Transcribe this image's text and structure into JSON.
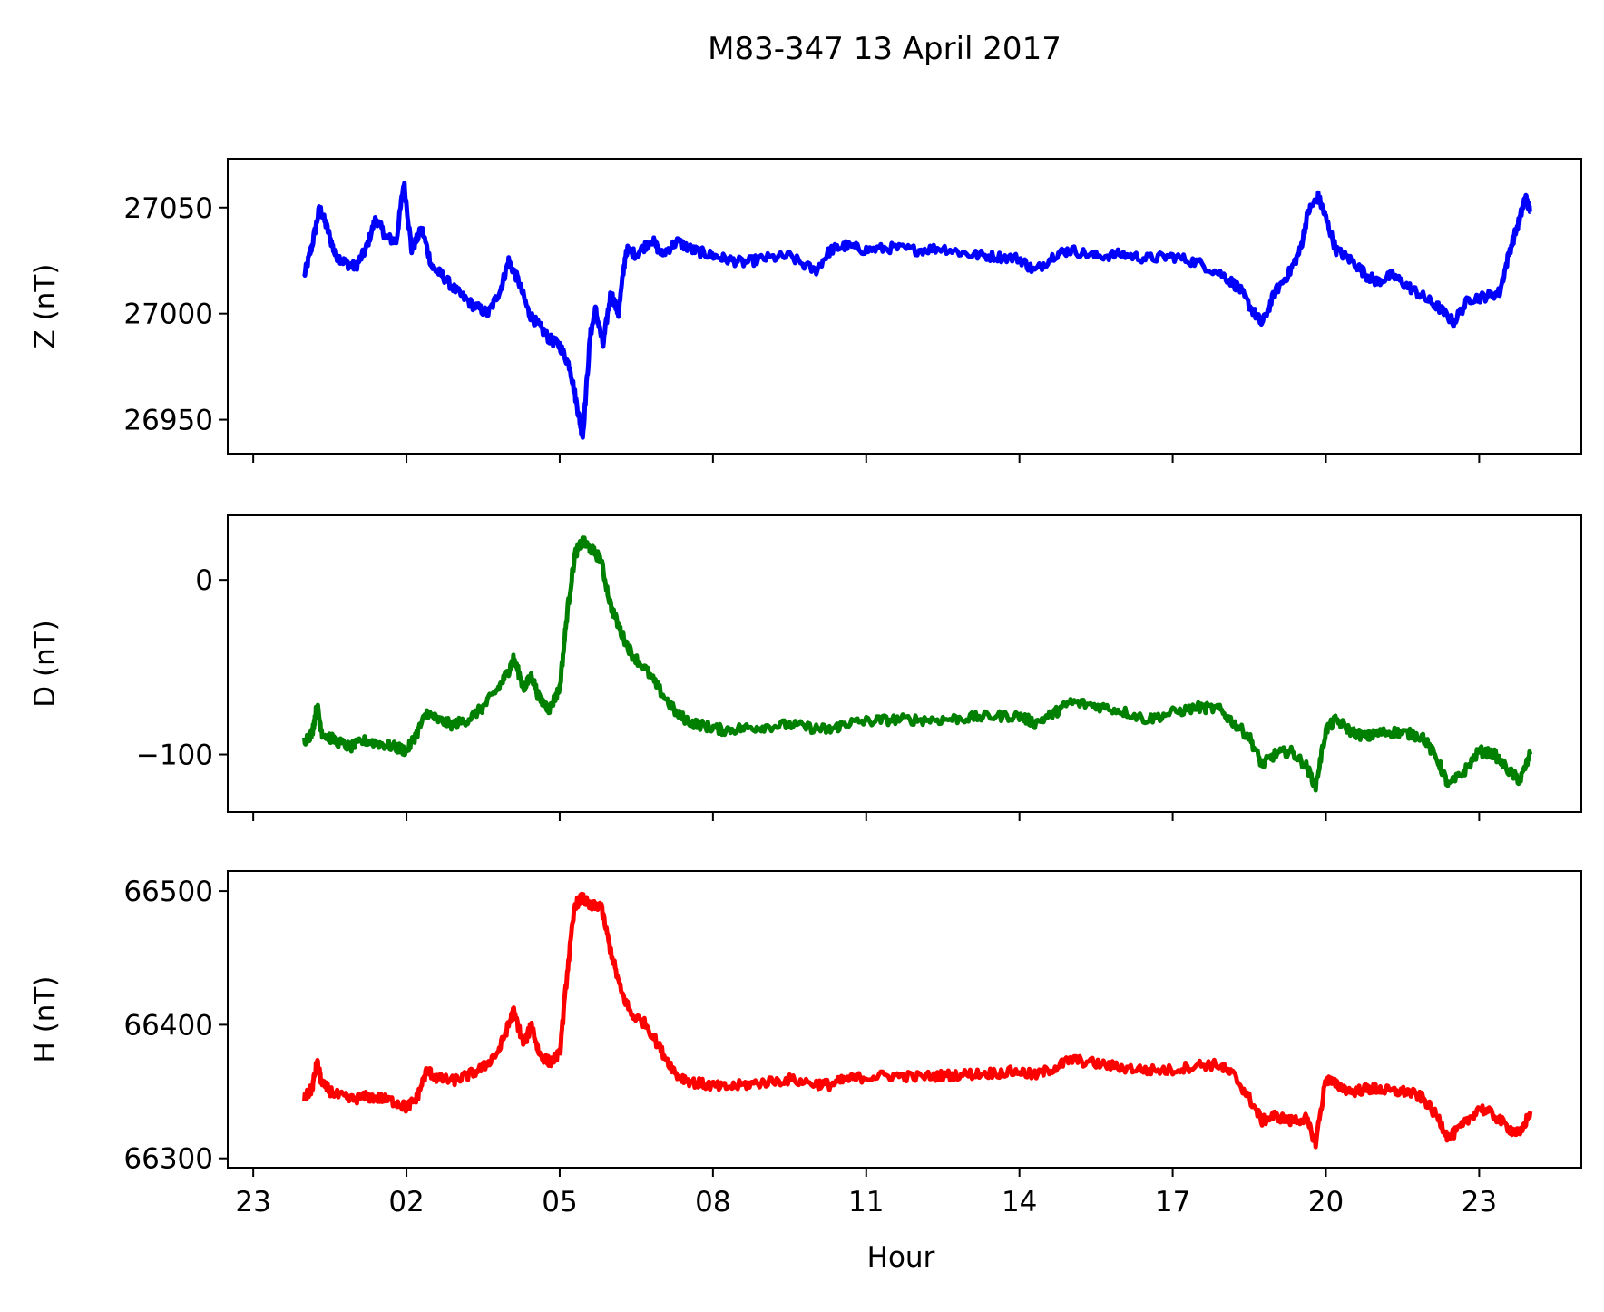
{
  "chart_data": {
    "type": "line",
    "title": "M83-347 13 April 2017",
    "xlabel": "Hour",
    "x_tick_labels": [
      "23",
      "02",
      "05",
      "08",
      "11",
      "14",
      "17",
      "20",
      "23"
    ],
    "x_tick_hours": [
      -1,
      2,
      5,
      8,
      11,
      14,
      17,
      20,
      23
    ],
    "xlim_hours": [
      -1.5,
      25.0
    ],
    "grid": false,
    "legend": "none",
    "panels": [
      {
        "name": "Z",
        "ylabel": "Z (nT)",
        "color": "#0000ff",
        "ylim": [
          26934,
          27073
        ],
        "yticks": [
          26950,
          27000,
          27050
        ],
        "x_hours": [
          0.0,
          0.15,
          0.3,
          0.45,
          0.6,
          0.8,
          1.0,
          1.2,
          1.4,
          1.6,
          1.8,
          1.95,
          2.1,
          2.3,
          2.5,
          2.7,
          3.0,
          3.3,
          3.6,
          3.85,
          4.0,
          4.2,
          4.4,
          4.6,
          4.8,
          5.0,
          5.2,
          5.35,
          5.45,
          5.6,
          5.7,
          5.85,
          6.0,
          6.15,
          6.3,
          6.5,
          6.8,
          7.0,
          7.3,
          7.6,
          7.9,
          8.2,
          8.6,
          9.0,
          9.5,
          10.0,
          10.3,
          10.6,
          11.0,
          11.5,
          12.0,
          12.5,
          13.0,
          13.5,
          14.0,
          14.3,
          14.7,
          15.0,
          15.5,
          16.0,
          16.5,
          17.0,
          17.5,
          18.0,
          18.3,
          18.55,
          18.75,
          19.0,
          19.3,
          19.5,
          19.65,
          19.85,
          20.0,
          20.2,
          20.5,
          20.8,
          21.0,
          21.3,
          21.6,
          21.9,
          22.2,
          22.5,
          22.8,
          23.1,
          23.4,
          23.6,
          23.8,
          23.9,
          24.0
        ],
        "values": [
          27018,
          27032,
          27050,
          27040,
          27028,
          27024,
          27022,
          27030,
          27045,
          27036,
          27034,
          27062,
          27030,
          27040,
          27022,
          27018,
          27010,
          27004,
          27000,
          27012,
          27025,
          27015,
          27000,
          26994,
          26988,
          26985,
          26975,
          26955,
          26942,
          26990,
          27002,
          26985,
          27010,
          27000,
          27030,
          27028,
          27035,
          27028,
          27034,
          27030,
          27028,
          27026,
          27024,
          27026,
          27027,
          27020,
          27030,
          27032,
          27030,
          27031,
          27030,
          27031,
          27028,
          27027,
          27026,
          27020,
          27028,
          27030,
          27027,
          27028,
          27026,
          27027,
          27024,
          27018,
          27012,
          27002,
          26995,
          27010,
          27020,
          27030,
          27048,
          27055,
          27045,
          27030,
          27025,
          27018,
          27015,
          27018,
          27013,
          27008,
          27003,
          26996,
          27007,
          27008,
          27010,
          27030,
          27045,
          27055,
          27048
        ]
      },
      {
        "name": "D",
        "ylabel": "D (nT)",
        "color": "#008000",
        "ylim": [
          -133,
          37
        ],
        "yticks": [
          0,
          -100
        ],
        "ytick_labels": [
          "0",
          "−100"
        ],
        "x_hours": [
          0.0,
          0.15,
          0.25,
          0.35,
          0.6,
          0.9,
          1.2,
          1.5,
          1.8,
          2.0,
          2.2,
          2.4,
          2.6,
          2.9,
          3.2,
          3.5,
          3.8,
          4.0,
          4.1,
          4.3,
          4.45,
          4.6,
          4.8,
          5.0,
          5.15,
          5.3,
          5.45,
          5.6,
          5.8,
          6.0,
          6.2,
          6.4,
          6.7,
          7.0,
          7.3,
          7.6,
          7.9,
          8.2,
          8.6,
          9.0,
          9.5,
          10.0,
          10.3,
          10.6,
          11.0,
          11.5,
          12.0,
          12.5,
          13.0,
          13.5,
          14.0,
          14.3,
          14.7,
          15.0,
          15.5,
          16.0,
          16.5,
          17.0,
          17.5,
          17.9,
          18.2,
          18.5,
          18.75,
          19.0,
          19.3,
          19.6,
          19.8,
          20.0,
          20.2,
          20.5,
          20.8,
          21.0,
          21.3,
          21.6,
          21.9,
          22.2,
          22.4,
          22.7,
          23.0,
          23.3,
          23.6,
          23.8,
          24.0
        ],
        "values": [
          -92,
          -88,
          -72,
          -88,
          -92,
          -96,
          -92,
          -94,
          -96,
          -98,
          -88,
          -76,
          -80,
          -83,
          -80,
          -73,
          -62,
          -52,
          -45,
          -62,
          -55,
          -68,
          -74,
          -62,
          -18,
          15,
          22,
          18,
          12,
          -15,
          -30,
          -42,
          -52,
          -65,
          -77,
          -82,
          -84,
          -86,
          -85,
          -84,
          -83,
          -85,
          -86,
          -82,
          -81,
          -80,
          -80,
          -80,
          -79,
          -78,
          -78,
          -82,
          -76,
          -70,
          -72,
          -75,
          -80,
          -76,
          -73,
          -74,
          -82,
          -90,
          -106,
          -100,
          -98,
          -106,
          -118,
          -86,
          -80,
          -87,
          -90,
          -88,
          -87,
          -88,
          -90,
          -104,
          -118,
          -110,
          -98,
          -100,
          -110,
          -115,
          -100
        ]
      },
      {
        "name": "H",
        "ylabel": "H (nT)",
        "color": "#ff0000",
        "ylim": [
          66293,
          66515
        ],
        "yticks": [
          66300,
          66400,
          66500
        ],
        "x_hours": [
          0.0,
          0.15,
          0.25,
          0.35,
          0.6,
          0.9,
          1.2,
          1.5,
          1.8,
          2.0,
          2.2,
          2.4,
          2.6,
          2.9,
          3.2,
          3.5,
          3.8,
          4.0,
          4.1,
          4.3,
          4.45,
          4.6,
          4.8,
          5.0,
          5.15,
          5.3,
          5.45,
          5.6,
          5.8,
          6.0,
          6.2,
          6.4,
          6.7,
          7.0,
          7.3,
          7.6,
          7.9,
          8.2,
          8.6,
          9.0,
          9.5,
          10.0,
          10.3,
          10.6,
          11.0,
          11.5,
          12.0,
          12.5,
          13.0,
          13.5,
          14.0,
          14.3,
          14.7,
          15.0,
          15.5,
          16.0,
          16.5,
          17.0,
          17.5,
          17.9,
          18.2,
          18.5,
          18.75,
          19.0,
          19.3,
          19.6,
          19.8,
          20.0,
          20.2,
          20.5,
          20.8,
          21.0,
          21.3,
          21.6,
          21.9,
          22.2,
          22.4,
          22.7,
          23.0,
          23.3,
          23.6,
          23.8,
          24.0
        ],
        "values": [
          66345,
          66352,
          66372,
          66355,
          66348,
          66344,
          66346,
          66345,
          66342,
          66338,
          66345,
          66366,
          66360,
          66358,
          66362,
          66368,
          66380,
          66400,
          66410,
          66385,
          66400,
          66378,
          66372,
          66378,
          66440,
          66490,
          66495,
          66488,
          66490,
          66455,
          66425,
          66408,
          66400,
          66380,
          66362,
          66357,
          66355,
          66353,
          66355,
          66357,
          66359,
          66356,
          66355,
          66359,
          66361,
          66362,
          66361,
          66362,
          66363,
          66364,
          66365,
          66362,
          66368,
          66374,
          66371,
          66368,
          66366,
          66366,
          66370,
          66370,
          66362,
          66345,
          66328,
          66332,
          66328,
          66330,
          66312,
          66360,
          66355,
          66350,
          66352,
          66352,
          66350,
          66350,
          66345,
          66330,
          66315,
          66325,
          66338,
          66332,
          66322,
          66318,
          66335
        ]
      }
    ]
  }
}
